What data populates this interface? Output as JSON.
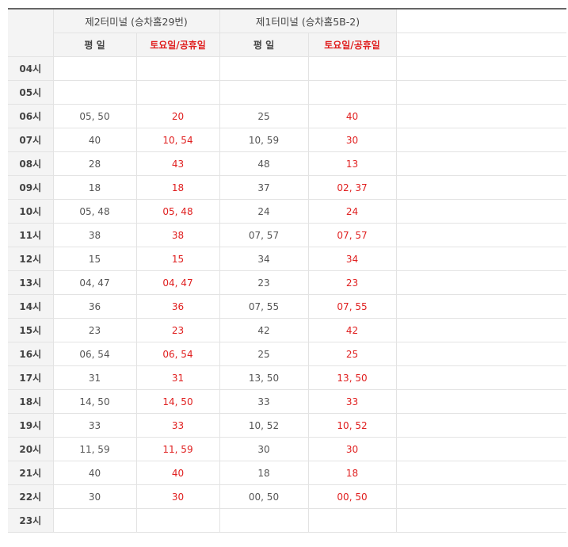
{
  "header": {
    "terminals": [
      {
        "name": "제2터미널 (승차홈29번)",
        "weekday_label": "평 일",
        "holiday_label": "토요일/공휴일"
      },
      {
        "name": "제1터미널 (승차홈5B-2)",
        "weekday_label": "평 일",
        "holiday_label": "토요일/공휴일"
      }
    ]
  },
  "colors": {
    "holiday_text": "#e02020",
    "header_bg": "#f4f4f4",
    "top_rule": "#666666"
  },
  "rows": [
    {
      "hour": "04시",
      "t2_weekday": "",
      "t2_holiday": "",
      "t1_weekday": "",
      "t1_holiday": ""
    },
    {
      "hour": "05시",
      "t2_weekday": "",
      "t2_holiday": "",
      "t1_weekday": "",
      "t1_holiday": ""
    },
    {
      "hour": "06시",
      "t2_weekday": "05, 50",
      "t2_holiday": "20",
      "t1_weekday": "25",
      "t1_holiday": "40"
    },
    {
      "hour": "07시",
      "t2_weekday": "40",
      "t2_holiday": "10, 54",
      "t1_weekday": "10, 59",
      "t1_holiday": "30"
    },
    {
      "hour": "08시",
      "t2_weekday": "28",
      "t2_holiday": "43",
      "t1_weekday": "48",
      "t1_holiday": "13"
    },
    {
      "hour": "09시",
      "t2_weekday": "18",
      "t2_holiday": "18",
      "t1_weekday": "37",
      "t1_holiday": "02, 37"
    },
    {
      "hour": "10시",
      "t2_weekday": "05, 48",
      "t2_holiday": "05, 48",
      "t1_weekday": "24",
      "t1_holiday": "24"
    },
    {
      "hour": "11시",
      "t2_weekday": "38",
      "t2_holiday": "38",
      "t1_weekday": "07, 57",
      "t1_holiday": "07, 57"
    },
    {
      "hour": "12시",
      "t2_weekday": "15",
      "t2_holiday": "15",
      "t1_weekday": "34",
      "t1_holiday": "34"
    },
    {
      "hour": "13시",
      "t2_weekday": "04, 47",
      "t2_holiday": "04, 47",
      "t1_weekday": "23",
      "t1_holiday": "23"
    },
    {
      "hour": "14시",
      "t2_weekday": "36",
      "t2_holiday": "36",
      "t1_weekday": "07, 55",
      "t1_holiday": "07, 55"
    },
    {
      "hour": "15시",
      "t2_weekday": "23",
      "t2_holiday": "23",
      "t1_weekday": "42",
      "t1_holiday": "42"
    },
    {
      "hour": "16시",
      "t2_weekday": "06, 54",
      "t2_holiday": "06, 54",
      "t1_weekday": "25",
      "t1_holiday": "25"
    },
    {
      "hour": "17시",
      "t2_weekday": "31",
      "t2_holiday": "31",
      "t1_weekday": "13, 50",
      "t1_holiday": "13, 50"
    },
    {
      "hour": "18시",
      "t2_weekday": "14, 50",
      "t2_holiday": "14, 50",
      "t1_weekday": "33",
      "t1_holiday": "33"
    },
    {
      "hour": "19시",
      "t2_weekday": "33",
      "t2_holiday": "33",
      "t1_weekday": "10, 52",
      "t1_holiday": "10, 52"
    },
    {
      "hour": "20시",
      "t2_weekday": "11, 59",
      "t2_holiday": "11, 59",
      "t1_weekday": "30",
      "t1_holiday": "30"
    },
    {
      "hour": "21시",
      "t2_weekday": "40",
      "t2_holiday": "40",
      "t1_weekday": "18",
      "t1_holiday": "18"
    },
    {
      "hour": "22시",
      "t2_weekday": "30",
      "t2_holiday": "30",
      "t1_weekday": "00, 50",
      "t1_holiday": "00, 50"
    },
    {
      "hour": "23시",
      "t2_weekday": "",
      "t2_holiday": "",
      "t1_weekday": "",
      "t1_holiday": ""
    }
  ]
}
